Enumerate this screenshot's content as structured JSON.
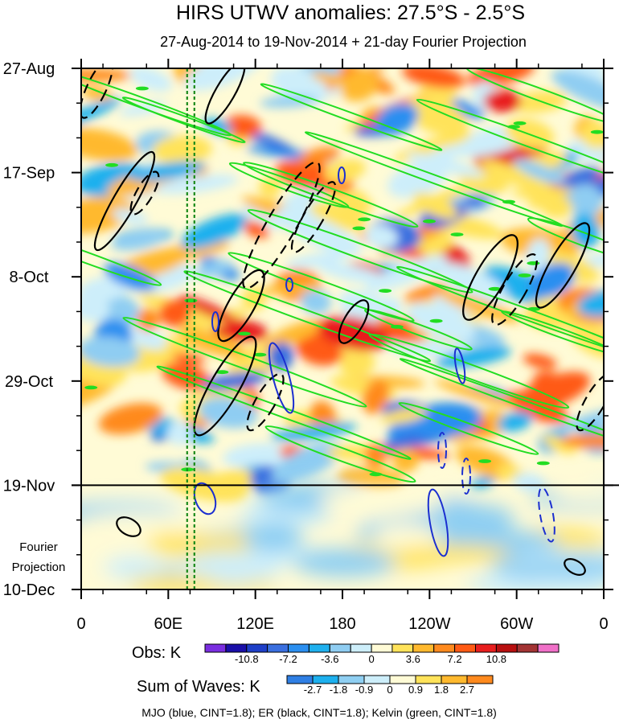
{
  "chart_data": {
    "type": "heatmap",
    "title": "HIRS UTWV anomalies: 27.5°S - 2.5°S",
    "subtitle": "27-Aug-2014 to 19-Nov-2014 + 21-day Fourier Projection",
    "x_tick_labels": [
      "0",
      "60E",
      "120E",
      "180",
      "120W",
      "60W",
      "0"
    ],
    "x_range": [
      0,
      360
    ],
    "y_tick_labels": [
      "27-Aug",
      "17-Sep",
      "8-Oct",
      "29-Oct",
      "19-Nov",
      "10-Dec"
    ],
    "y_range_days": [
      0,
      105
    ],
    "projection_start_day": 84,
    "projection_label": [
      "Fourier",
      "Projection"
    ],
    "obs_legend": {
      "label": "Obs: K",
      "tick_labels": [
        "-10.8",
        "-7.2",
        "-3.6",
        "0",
        "3.6",
        "7.2",
        "10.8"
      ],
      "colors": [
        "#7a2ee0",
        "#1a0fa8",
        "#1e3fc8",
        "#3a6fdf",
        "#2b8ff0",
        "#1fb0ee",
        "#8fcdf2",
        "#cdeefa",
        "#fffbd6",
        "#ffe35a",
        "#ffb92e",
        "#ff8a1e",
        "#ff5a14",
        "#e81e1e",
        "#b81010",
        "#a33434",
        "#f070c8"
      ]
    },
    "waves_legend": {
      "label": "Sum of Waves: K",
      "tick_labels": [
        "-2.7",
        "-1.8",
        "-0.9",
        "0",
        "0.9",
        "1.8",
        "2.7"
      ],
      "colors": [
        "#2f7fe4",
        "#1db0ee",
        "#8fcff2",
        "#cdeefa",
        "#fffbd6",
        "#ffe35a",
        "#ffb92e",
        "#ff8a1e"
      ]
    },
    "footnote": "MJO (blue, CINT=1.8); ER (black, CINT=1.8); Kelvin (green, CINT=1.8)",
    "reference_lines_lon": [
      73,
      78
    ],
    "contour_colors": {
      "mjo": "#1b2fd0",
      "er": "#000000",
      "kelvin": "#22dd22",
      "reference": "#1a8a1a"
    }
  }
}
